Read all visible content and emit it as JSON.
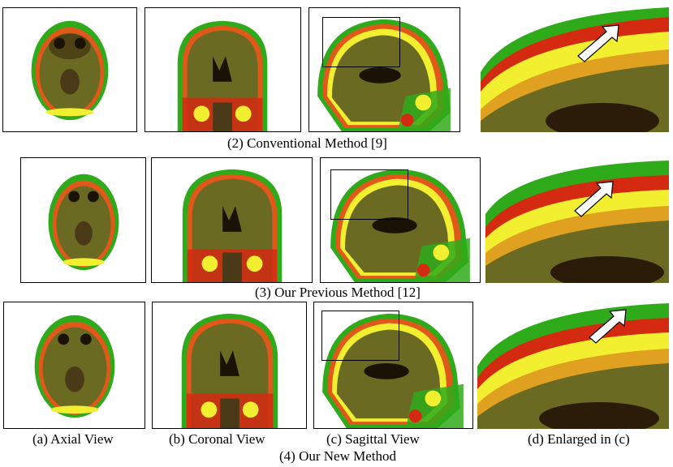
{
  "rows": [
    {
      "caption": "(2) Conventional Method [9]"
    },
    {
      "caption": "(3) Our Previous Method [12]"
    },
    {
      "caption": "(4) Our New Method"
    }
  ],
  "column_labels": {
    "axial": "(a) Axial View",
    "coronal": "(b) Coronal View",
    "sagittal": "(c) Sagittal View",
    "enlarged": "(d) Enlarged in (c)"
  },
  "colors": {
    "tissue": "#6b6a22",
    "skull_orange": "#e0581a",
    "bright_yellow": "#f2ee30",
    "green_edge": "#2faa1a",
    "red": "#d42a12",
    "dark": "#3a2a10"
  }
}
